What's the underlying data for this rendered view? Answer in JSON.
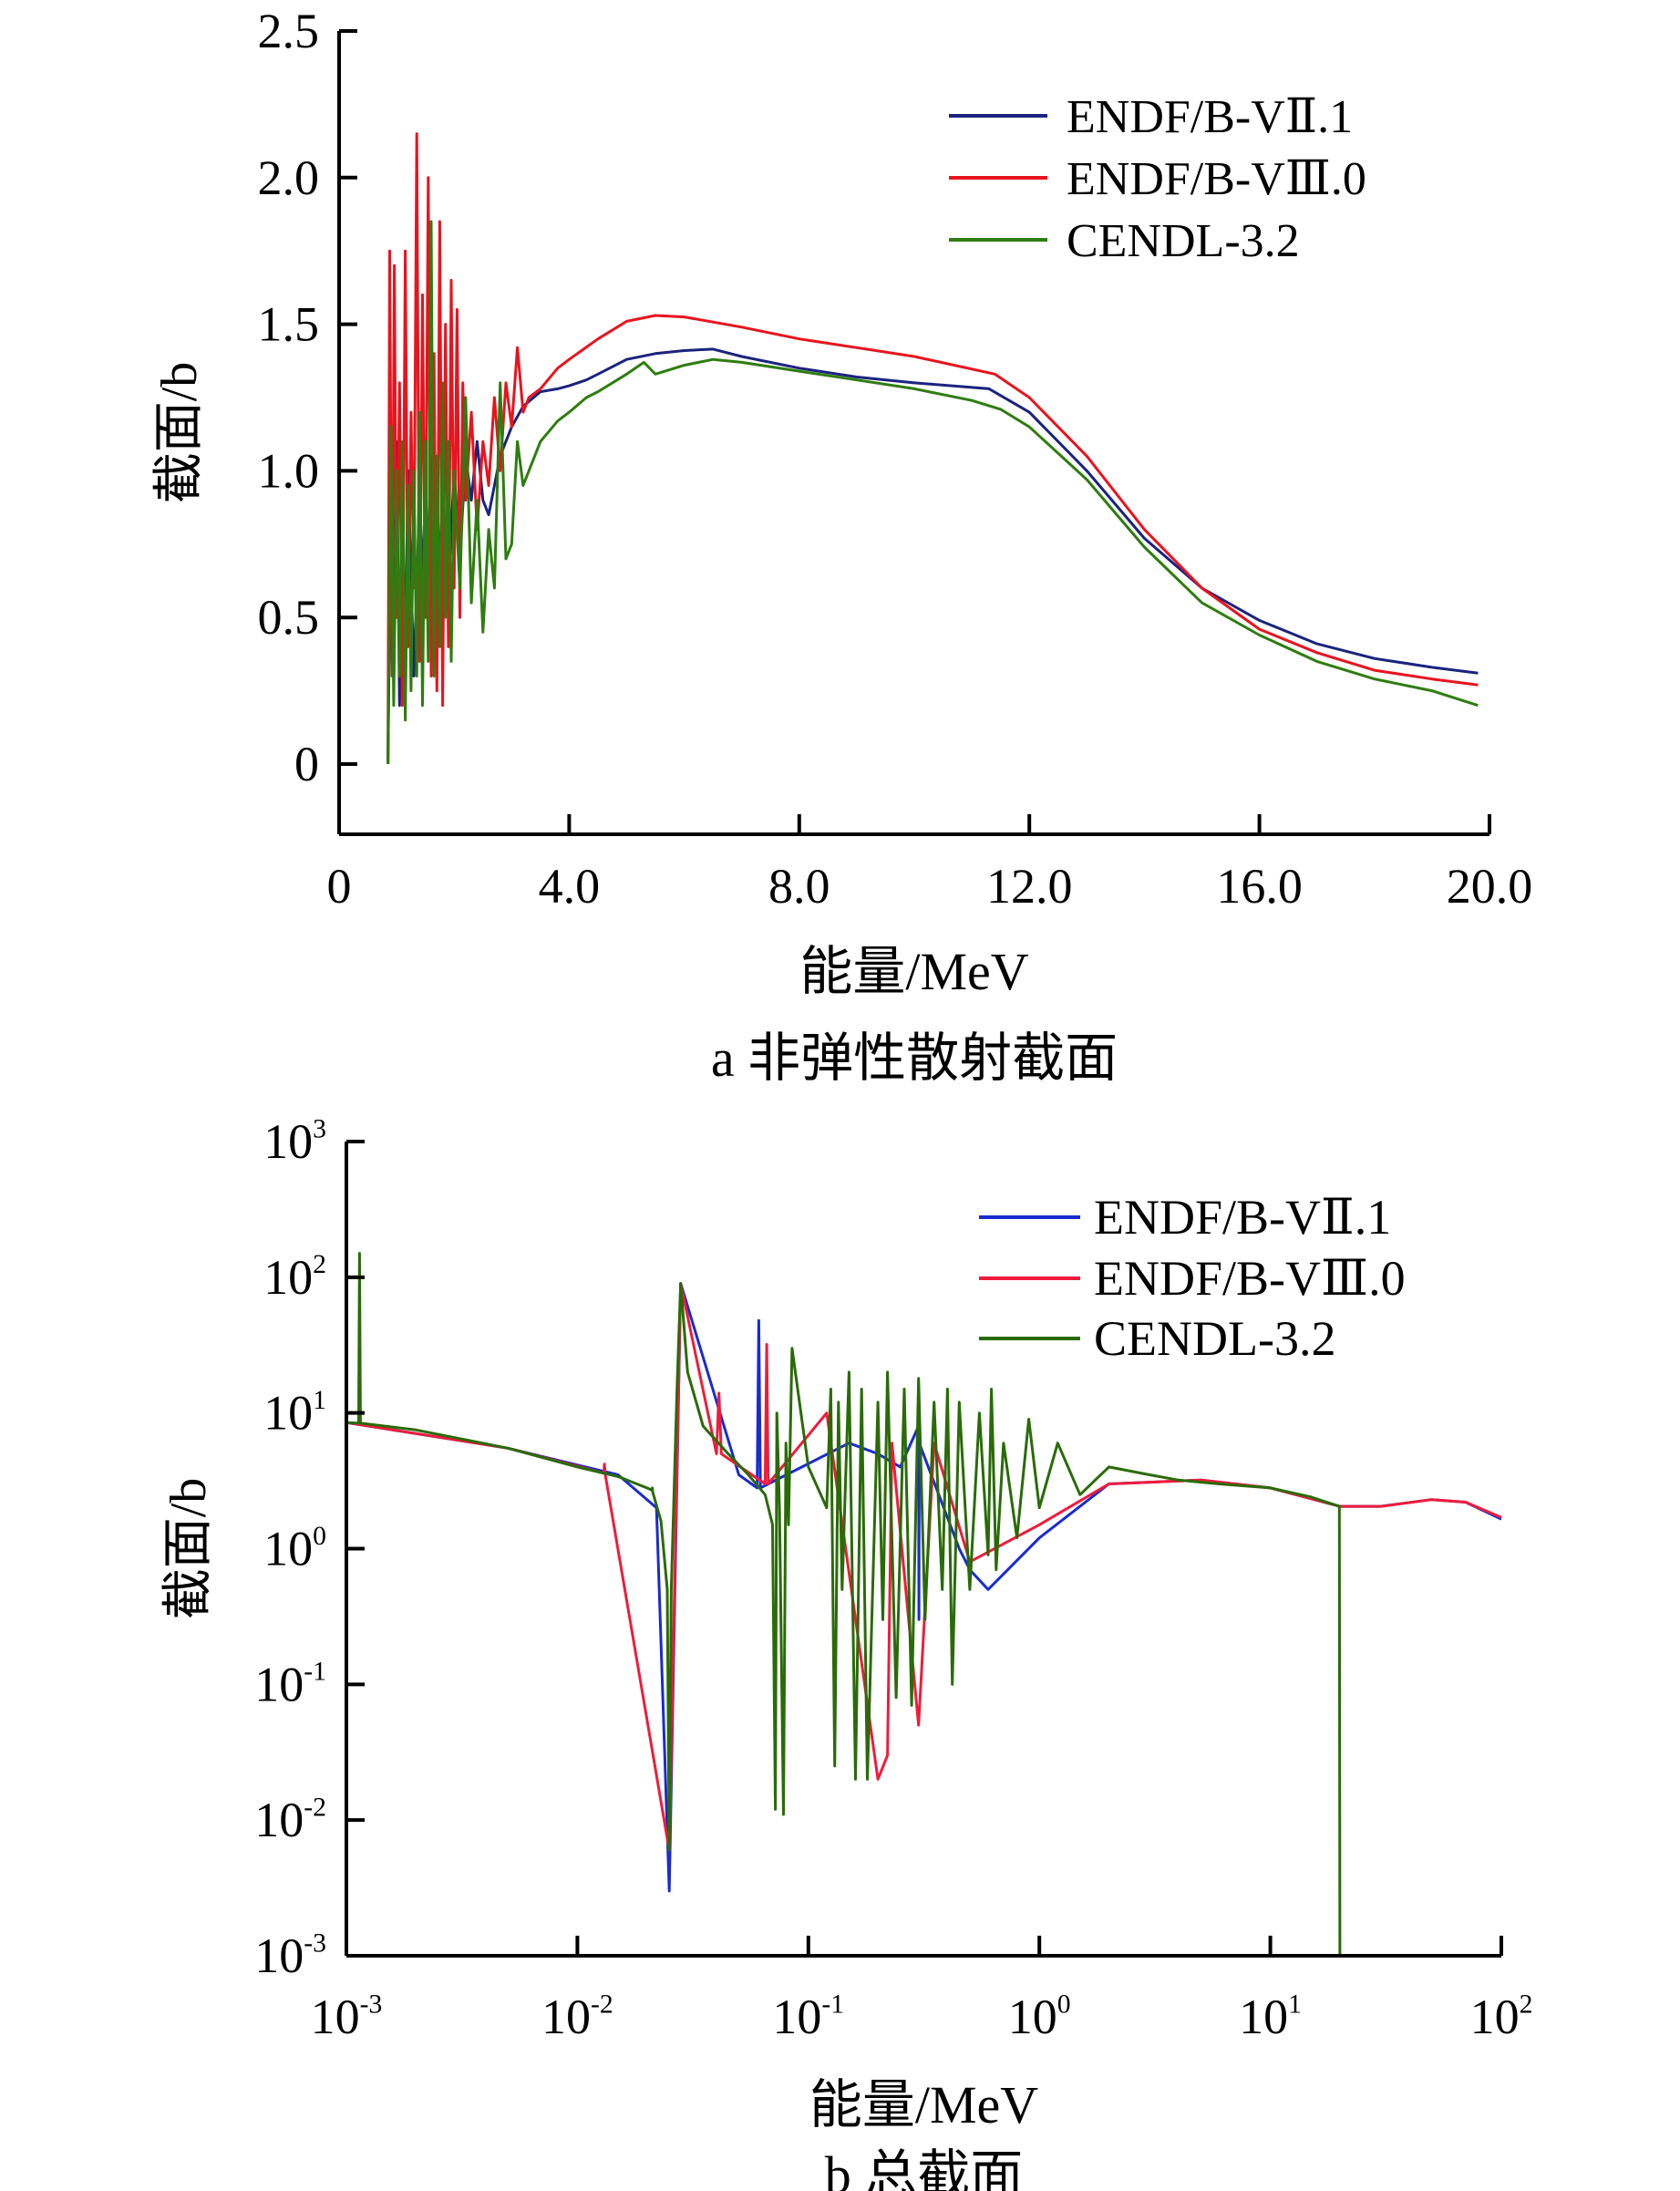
{
  "chart_data": [
    {
      "id": "a",
      "type": "line",
      "caption": "a  非弹性散射截面",
      "xlabel": "能量/MeV",
      "ylabel": "截面/b",
      "xscale": "linear",
      "yscale": "linear",
      "xlim": [
        0,
        20
      ],
      "ylim": [
        -0.25,
        2.5
      ],
      "xticks": [
        0,
        4,
        8,
        12,
        16,
        20
      ],
      "xtick_labels": [
        "0",
        "4.0",
        "8.0",
        "12.0",
        "16.0",
        "20.0"
      ],
      "yticks": [
        0,
        0.5,
        1.0,
        1.5,
        2.0,
        2.5
      ],
      "ytick_labels": [
        "0",
        "0.5",
        "1.0",
        "1.5",
        "2.0",
        "2.5"
      ],
      "legend_position": "top-right",
      "grid": false,
      "series": [
        {
          "name": "ENDF/B-VⅡ.1",
          "color": "#1a237e",
          "x": [
            0.85,
            0.9,
            0.95,
            1.0,
            1.05,
            1.1,
            1.15,
            1.2,
            1.3,
            1.4,
            1.5,
            1.6,
            1.7,
            1.8,
            1.9,
            2.0,
            2.1,
            2.2,
            2.3,
            2.4,
            2.5,
            2.6,
            2.7,
            2.8,
            2.9,
            3.0,
            3.2,
            3.5,
            3.8,
            4.0,
            4.3,
            4.5,
            5.0,
            5.5,
            6.0,
            6.5,
            7.0,
            8.0,
            9.0,
            10.0,
            11.3,
            12.0,
            13.0,
            14.0,
            15.0,
            16.0,
            17.0,
            18.0,
            19.0,
            19.8
          ],
          "y": [
            0.0,
            0.9,
            0.3,
            1.1,
            0.2,
            0.8,
            0.4,
            1.0,
            0.3,
            0.9,
            0.5,
            1.05,
            0.45,
            0.95,
            0.6,
            1.0,
            0.7,
            1.05,
            0.9,
            1.1,
            0.9,
            0.85,
            0.95,
            1.05,
            1.1,
            1.15,
            1.22,
            1.27,
            1.28,
            1.29,
            1.31,
            1.33,
            1.38,
            1.4,
            1.41,
            1.415,
            1.39,
            1.35,
            1.32,
            1.3,
            1.28,
            1.2,
            1.0,
            0.77,
            0.6,
            0.49,
            0.41,
            0.36,
            0.33,
            0.31
          ]
        },
        {
          "name": "ENDF/B-VⅢ.0",
          "color": "#e8141e",
          "x": [
            0.85,
            0.88,
            0.92,
            0.96,
            1.0,
            1.05,
            1.1,
            1.15,
            1.2,
            1.25,
            1.3,
            1.35,
            1.4,
            1.45,
            1.5,
            1.55,
            1.6,
            1.65,
            1.7,
            1.75,
            1.8,
            1.85,
            1.9,
            1.95,
            2.0,
            2.05,
            2.1,
            2.15,
            2.2,
            2.3,
            2.4,
            2.5,
            2.6,
            2.7,
            2.8,
            2.9,
            3.0,
            3.1,
            3.2,
            3.3,
            3.5,
            3.8,
            4.0,
            4.5,
            5.0,
            5.5,
            6.0,
            7.0,
            8.0,
            9.0,
            10.0,
            11.4,
            12.0,
            13.0,
            14.0,
            15.0,
            16.0,
            17.0,
            18.0,
            19.0,
            19.8
          ],
          "y": [
            0.0,
            1.75,
            0.3,
            1.7,
            0.5,
            1.3,
            0.2,
            1.75,
            0.4,
            1.2,
            0.6,
            2.15,
            0.35,
            1.6,
            0.5,
            2.0,
            0.3,
            1.4,
            0.25,
            1.85,
            0.2,
            1.5,
            0.4,
            1.65,
            0.6,
            1.55,
            0.5,
            1.3,
            0.9,
            1.2,
            0.8,
            1.1,
            0.95,
            1.25,
            1.0,
            1.3,
            1.15,
            1.42,
            1.2,
            1.25,
            1.28,
            1.35,
            1.38,
            1.45,
            1.51,
            1.53,
            1.525,
            1.49,
            1.45,
            1.42,
            1.39,
            1.33,
            1.25,
            1.05,
            0.8,
            0.6,
            0.46,
            0.38,
            0.32,
            0.29,
            0.27
          ]
        },
        {
          "name": "CENDL-3.2",
          "color": "#2e7d0f",
          "x": [
            0.85,
            0.9,
            0.95,
            1.0,
            1.05,
            1.1,
            1.15,
            1.2,
            1.25,
            1.3,
            1.35,
            1.4,
            1.45,
            1.5,
            1.55,
            1.6,
            1.65,
            1.7,
            1.75,
            1.8,
            1.85,
            1.9,
            1.95,
            2.0,
            2.1,
            2.2,
            2.3,
            2.4,
            2.5,
            2.6,
            2.7,
            2.8,
            2.9,
            3.0,
            3.1,
            3.2,
            3.3,
            3.5,
            3.8,
            4.0,
            4.3,
            4.5,
            5.0,
            5.3,
            5.5,
            6.0,
            6.5,
            7.0,
            8.0,
            9.0,
            10.0,
            11.0,
            11.5,
            12.0,
            13.0,
            14.0,
            15.0,
            16.0,
            17.0,
            18.0,
            19.0,
            19.8
          ],
          "y": [
            0.0,
            1.15,
            0.2,
            1.0,
            0.3,
            1.1,
            0.15,
            0.95,
            0.25,
            1.0,
            0.3,
            1.2,
            0.2,
            1.1,
            0.35,
            1.85,
            0.3,
            1.05,
            0.4,
            1.3,
            0.5,
            1.1,
            0.35,
            1.0,
            0.6,
            1.25,
            0.55,
            0.9,
            0.45,
            0.8,
            0.6,
            1.3,
            0.7,
            0.75,
            1.1,
            0.95,
            1.0,
            1.1,
            1.17,
            1.2,
            1.25,
            1.27,
            1.33,
            1.37,
            1.33,
            1.36,
            1.38,
            1.37,
            1.34,
            1.31,
            1.28,
            1.24,
            1.21,
            1.15,
            0.97,
            0.74,
            0.55,
            0.44,
            0.35,
            0.29,
            0.25,
            0.2
          ]
        }
      ]
    },
    {
      "id": "b",
      "type": "line",
      "caption": "b  总截面",
      "xlabel": "能量/MeV",
      "ylabel": "截面/b",
      "xscale": "log",
      "yscale": "log",
      "xlim": [
        0.001,
        100
      ],
      "ylim": [
        0.001,
        1000
      ],
      "xticks": [
        0.001,
        0.01,
        0.1,
        1,
        10,
        100
      ],
      "xtick_labels": [
        {
          "base": "10",
          "exp": "-3"
        },
        {
          "base": "10",
          "exp": "-2"
        },
        {
          "base": "10",
          "exp": "-1"
        },
        {
          "base": "10",
          "exp": "0"
        },
        {
          "base": "10",
          "exp": "1"
        },
        {
          "base": "10",
          "exp": "2"
        }
      ],
      "yticks": [
        0.001,
        0.01,
        0.1,
        1,
        10,
        100,
        1000
      ],
      "ytick_labels": [
        {
          "base": "10",
          "exp": "-3"
        },
        {
          "base": "10",
          "exp": "-2"
        },
        {
          "base": "10",
          "exp": "-1"
        },
        {
          "base": "10",
          "exp": "0"
        },
        {
          "base": "10",
          "exp": "1"
        },
        {
          "base": "10",
          "exp": "2"
        },
        {
          "base": "10",
          "exp": "3"
        }
      ],
      "legend_position": "top-right",
      "grid": false,
      "series": [
        {
          "name": "ENDF/B-VⅡ.1",
          "color": "#1a2bd0",
          "x": [
            0.001,
            0.005,
            0.015,
            0.022,
            0.025,
            0.028,
            0.05,
            0.06,
            0.061,
            0.062,
            0.15,
            0.2,
            0.25,
            0.3,
            0.301,
            0.302,
            0.45,
            0.5,
            0.6,
            1.0,
            2.0,
            5.0,
            10.0,
            20.0,
            30.0,
            50.0,
            70.0,
            100.0
          ],
          "y": [
            8.5,
            5.5,
            3.5,
            2.0,
            0.003,
            90,
            3.5,
            2.8,
            48,
            2.8,
            6,
            5,
            4,
            8,
            0.3,
            6,
            1.0,
            0.7,
            0.5,
            1.2,
            3.0,
            3.2,
            2.8,
            2.05,
            2.05,
            2.3,
            2.2,
            1.65
          ]
        },
        {
          "name": "ENDF/B-VⅢ.0",
          "color": "#ee1c3c",
          "x": [
            0.001,
            0.005,
            0.013,
            0.0131,
            0.0132,
            0.025,
            0.028,
            0.04,
            0.041,
            0.042,
            0.065,
            0.066,
            0.067,
            0.12,
            0.2,
            0.22,
            0.23,
            0.3,
            0.35,
            0.5,
            1.0,
            2.0,
            5.0,
            10.0,
            20.0,
            30.0,
            50.0,
            70.0,
            100.0
          ],
          "y": [
            8.5,
            5.5,
            3.6,
            4.2,
            3.5,
            0.006,
            90,
            5,
            14,
            5,
            3,
            32,
            3,
            10,
            0.02,
            0.03,
            6,
            0.05,
            6,
            0.8,
            1.5,
            3.0,
            3.2,
            2.8,
            2.05,
            2.05,
            2.3,
            2.2,
            1.7
          ]
        },
        {
          "name": "CENDL-3.2",
          "color": "#2a6b08",
          "x": [
            0.001,
            0.00113,
            0.00114,
            0.00115,
            0.002,
            0.005,
            0.01,
            0.015,
            0.02,
            0.021,
            0.0211,
            0.0212,
            0.023,
            0.0245,
            0.025,
            0.0255,
            0.027,
            0.028,
            0.03,
            0.035,
            0.045,
            0.055,
            0.065,
            0.07,
            0.072,
            0.073,
            0.075,
            0.078,
            0.08,
            0.082,
            0.085,
            0.1,
            0.12,
            0.125,
            0.13,
            0.135,
            0.14,
            0.15,
            0.16,
            0.17,
            0.18,
            0.2,
            0.21,
            0.22,
            0.24,
            0.26,
            0.28,
            0.3,
            0.32,
            0.35,
            0.38,
            0.4,
            0.42,
            0.45,
            0.5,
            0.55,
            0.6,
            0.62,
            0.65,
            0.7,
            0.8,
            0.9,
            1.0,
            1.2,
            1.5,
            2.0,
            3.0,
            4.0,
            6.0,
            10.0,
            15.0,
            19.9,
            20.0,
            20.01
          ],
          "y": [
            8.5,
            8.4,
            150,
            8.4,
            7.5,
            5.5,
            4.0,
            3.4,
            2.8,
            2.7,
            2.8,
            2.6,
            1.6,
            0.5,
            0.006,
            0.5,
            15,
            90,
            20,
            8,
            5,
            3.5,
            2.5,
            1.5,
            0.012,
            10,
            2,
            0.011,
            6,
            1.5,
            30,
            4,
            2,
            15,
            0.025,
            12,
            0.5,
            20,
            0.02,
            15,
            0.02,
            12,
            0.3,
            20,
            0.08,
            15,
            0.07,
            18,
            0.3,
            12,
            0.5,
            15,
            0.1,
            12,
            0.5,
            10,
            0.9,
            15,
            0.7,
            6,
            1.2,
            9,
            2,
            6,
            2.5,
            4,
            3.5,
            3.2,
            3.0,
            2.8,
            2.4,
            2.05,
            0.001,
            0.001
          ]
        }
      ]
    }
  ]
}
